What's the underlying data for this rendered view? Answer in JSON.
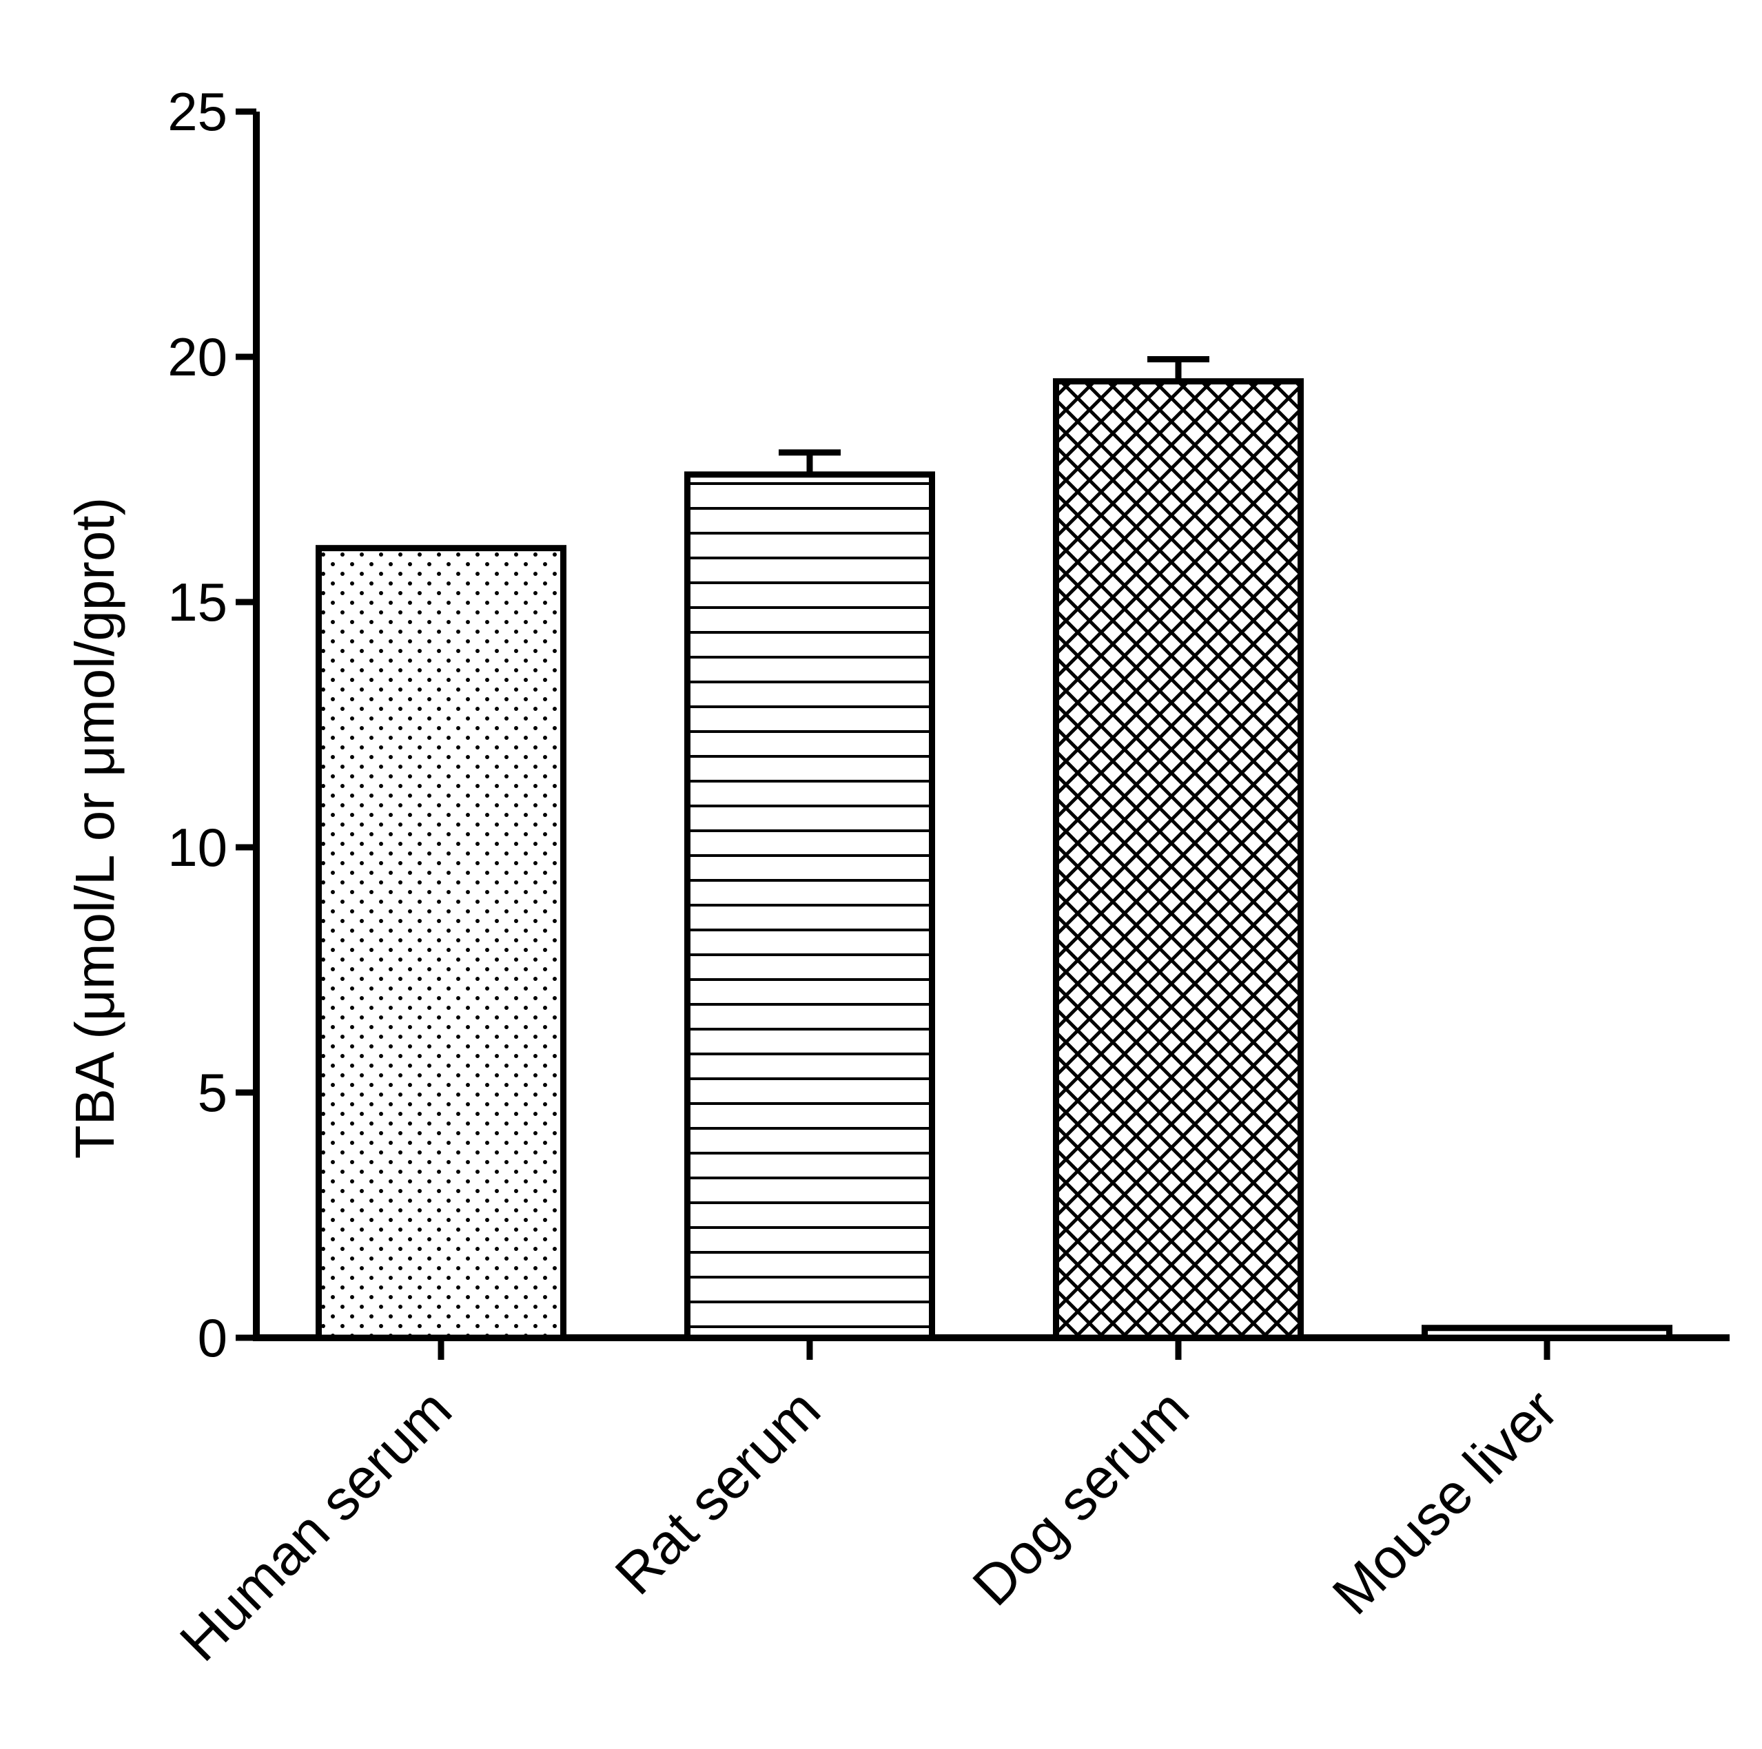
{
  "chart_data": {
    "type": "bar",
    "title": "",
    "xlabel": "",
    "ylabel": "TBA (μmol/L or μmol/gprot)",
    "ylim": [
      0,
      25
    ],
    "yticks": [
      0,
      5,
      10,
      15,
      20,
      25
    ],
    "grid": false,
    "legend": "none",
    "categories": [
      "Human serum",
      "Rat serum",
      "Dog serum",
      "Mouse liver"
    ],
    "values": [
      16.1,
      17.6,
      19.5,
      0.2
    ],
    "error_plus": [
      0,
      0.45,
      0.45,
      0
    ],
    "bar_patterns": [
      "dots",
      "horizontal-lines",
      "crosshatch",
      "horizontal-lines"
    ],
    "colors": {
      "stroke": "#000000",
      "fill": "#ffffff"
    }
  }
}
